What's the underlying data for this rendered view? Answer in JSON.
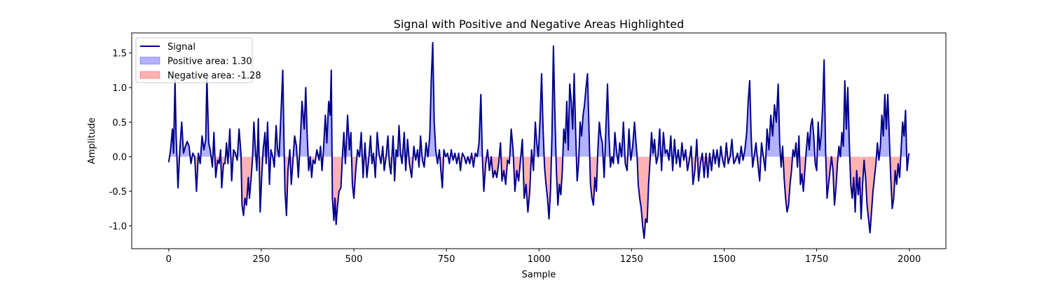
{
  "chart_data": {
    "type": "line",
    "title": "Signal with Positive and Negative Areas Highlighted",
    "x_label": "Sample",
    "y_label": "Amplitude",
    "xlim": [
      -99.95,
      2098.95
    ],
    "ylim": [
      -1.33,
      1.79
    ],
    "xticks": [
      0,
      250,
      500,
      750,
      1000,
      1250,
      1500,
      1750,
      2000
    ],
    "yticks": [
      {
        "value": -1.0,
        "label": "-1.0"
      },
      -0.5,
      {
        "value": 0.0,
        "label": "0.0"
      },
      0.5,
      {
        "value": 1.0,
        "label": "1.0"
      },
      1.5
    ],
    "legend": "upper left",
    "series": [
      {
        "name": "Signal",
        "color": "#00008b",
        "values": [
          -0.08,
          0.1,
          0.4,
          0.05,
          1.1,
          0.3,
          -0.45,
          0.1,
          0.5,
          0.05,
          0.15,
          0.22,
          0.15,
          -0.1,
          0.05,
          0.0,
          -0.5,
          0.05,
          -0.1,
          0.3,
          0.1,
          0.25,
          1.15,
          0.2,
          0.1,
          -0.15,
          0.35,
          -0.3,
          -0.05,
          -0.1,
          0.1,
          -0.45,
          -0.1,
          -0.1,
          0.2,
          -0.1,
          0.4,
          -0.35,
          0.1,
          0.05,
          -0.05,
          0.4,
          0.05,
          -0.7,
          -0.85,
          -0.6,
          -0.7,
          -0.3,
          -0.6,
          -0.35,
          -0.05,
          0.5,
          0.1,
          -0.2,
          0.55,
          -0.8,
          -0.3,
          0.1,
          0.35,
          -0.1,
          0.5,
          -0.4,
          0.1,
          0.0,
          -0.15,
          0.45,
          0.1,
          0.0,
          0.6,
          1.25,
          0.3,
          -0.5,
          -0.85,
          -0.2,
          0.1,
          -0.4,
          -0.1,
          0.3,
          0.15,
          -0.3,
          0.3,
          0.8,
          0.4,
          1.0,
          0.3,
          -0.2,
          0.0,
          -0.3,
          -0.05,
          -0.1,
          0.1,
          -0.05,
          0.15,
          -0.2,
          0.1,
          0.6,
          0.2,
          0.8,
          0.6,
          1.25,
          -0.6,
          -0.92,
          -0.6,
          -0.98,
          -0.7,
          -0.5,
          -0.45,
          0.1,
          0.35,
          -0.1,
          0.6,
          0.1,
          0.35,
          -0.4,
          -0.6,
          -0.2,
          0.1,
          0.0,
          0.35,
          -0.3,
          0.2,
          -0.3,
          -0.05,
          0.3,
          -0.1,
          0.05,
          -0.3,
          0.35,
          0.05,
          -0.1,
          0.15,
          -0.2,
          0.0,
          0.3,
          -0.1,
          -0.25,
          0.3,
          -0.35,
          0.1,
          0.0,
          0.45,
          0.05,
          -0.1,
          0.35,
          -0.2,
          0.25,
          -0.1,
          -0.3,
          0.15,
          -0.05,
          0.1,
          -0.15,
          0.3,
          -0.05,
          -0.15,
          0.2,
          0.0,
          0.3,
          1.1,
          1.65,
          0.5,
          0.1,
          -0.1,
          0.1,
          -0.2,
          -0.45,
          0.1,
          0.0,
          0.05,
          -0.1,
          0.1,
          -0.05,
          0.05,
          -0.1,
          0.05,
          -0.2,
          0.05,
          0.0,
          -0.1,
          0.0,
          -0.1,
          0.05,
          -0.15,
          0.05,
          0.0,
          0.2,
          0.9,
          0.0,
          -0.5,
          -0.1,
          0.1,
          -0.2,
          0.0,
          -0.3,
          -0.2,
          -0.3,
          -0.1,
          0.2,
          -0.35,
          -0.2,
          -0.4,
          -0.05,
          -0.1,
          0.4,
          0.1,
          -0.5,
          -0.2,
          -0.35,
          -0.05,
          0.25,
          -0.6,
          -0.4,
          -0.8,
          -0.5,
          0.1,
          -0.2,
          0.5,
          0.2,
          0.0,
          0.55,
          1.2,
          0.4,
          -0.15,
          -0.4,
          -0.6,
          -0.9,
          -0.5,
          0.3,
          1.6,
          0.6,
          -0.2,
          -0.7,
          -0.4,
          -0.55,
          -0.2,
          0.4,
          0.2,
          0.8,
          0.1,
          1.05,
          0.8,
          0.4,
          1.2,
          0.35,
          -0.35,
          -0.1,
          0.5,
          0.3,
          0.6,
          0.75,
          1.0,
          1.2,
          0.4,
          -0.4,
          -0.6,
          -0.7,
          -0.3,
          -0.5,
          0.1,
          0.5,
          0.3,
          0.2,
          -0.3,
          0.3,
          1.05,
          0.3,
          -0.15,
          0.0,
          -0.1,
          0.35,
          0.05,
          -0.1,
          0.2,
          0.0,
          0.5,
          -0.1,
          -0.2,
          0.4,
          -0.05,
          0.15,
          0.5,
          0.2,
          0.0,
          -0.4,
          -0.6,
          -0.75,
          -1.0,
          -1.18,
          -0.9,
          -0.95,
          -0.4,
          -0.05,
          0.35,
          0.05,
          0.25,
          -0.1,
          0.0,
          0.4,
          -0.2,
          0.35,
          0.05,
          0.1,
          -0.05,
          0.3,
          -0.2,
          0.25,
          -0.1,
          0.1,
          -0.15,
          0.2,
          -0.05,
          0.1,
          -0.2,
          -0.05,
          0.15,
          -0.4,
          -0.2,
          0.25,
          -0.35,
          -0.1,
          0.05,
          -0.3,
          0.05,
          -0.3,
          0.05,
          -0.2,
          0.1,
          -0.1,
          0.1,
          -0.15,
          0.15,
          -0.05,
          -0.15,
          0.2,
          -0.1,
          0.0,
          0.25,
          -0.1,
          -0.05,
          0.05,
          -0.1,
          0.15,
          -0.05,
          0.1,
          0.35,
          0.8,
          1.1,
          0.3,
          -0.15,
          0.0,
          0.2,
          -0.1,
          -0.35,
          0.2,
          0.0,
          -0.2,
          0.4,
          0.1,
          0.6,
          0.3,
          0.75,
          0.5,
          1.05,
          0.2,
          -0.15,
          0.15,
          -0.3,
          -0.6,
          -0.8,
          -0.7,
          -0.4,
          -0.2,
          0.1,
          0.0,
          0.2,
          -0.15,
          0.3,
          -0.4,
          -0.25,
          -0.5,
          -0.2,
          0.1,
          0.35,
          0.1,
          0.45,
          0.55,
          0.3,
          -0.1,
          -0.2,
          0.5,
          0.1,
          0.3,
          0.7,
          1.4,
          0.1,
          -0.6,
          -0.4,
          -0.2,
          0.0,
          -0.2,
          -0.7,
          -0.45,
          -0.1,
          0.15,
          0.0,
          0.35,
          0.15,
          1.1,
          0.4,
          1.0,
          0.2,
          -0.4,
          -0.6,
          -0.3,
          -0.8,
          -0.2,
          -0.55,
          -0.3,
          -0.9,
          -0.4,
          -0.05,
          -0.3,
          -0.7,
          -0.9,
          -1.1,
          -0.8,
          -0.5,
          -0.3,
          -0.1,
          0.2,
          -0.05,
          0.15,
          0.6,
          0.3,
          0.9,
          0.4,
          0.9,
          0.3,
          -0.3,
          -0.75,
          -0.6,
          -0.2,
          -0.4,
          -0.1,
          -0.3,
          0.1,
          0.5,
          0.3,
          0.67,
          -0.2,
          0.05
        ]
      }
    ],
    "x": [
      0,
      5,
      10,
      13,
      17,
      20,
      25,
      30,
      35,
      40,
      45,
      50,
      55,
      60,
      65,
      70,
      75,
      80,
      85,
      90,
      95,
      100,
      103,
      108,
      112,
      118,
      122,
      127,
      132,
      136,
      140,
      143,
      148,
      152,
      156,
      160,
      165,
      170,
      175,
      180,
      185,
      190,
      195,
      198,
      202,
      206,
      210,
      215,
      218,
      222,
      226,
      230,
      234,
      238,
      242,
      247,
      251,
      255,
      260,
      263,
      267,
      272,
      276,
      281,
      285,
      290,
      294,
      298,
      303,
      308,
      311,
      314,
      318,
      322,
      327,
      331,
      335,
      340,
      345,
      350,
      356,
      360,
      366,
      370,
      374,
      378,
      382,
      386,
      390,
      395,
      400,
      406,
      410,
      414,
      418,
      423,
      427,
      432,
      436,
      439,
      442,
      446,
      449,
      452,
      456,
      460,
      465,
      470,
      473,
      477,
      483,
      488,
      492,
      496,
      500,
      505,
      510,
      515,
      520,
      525,
      530,
      535,
      540,
      545,
      549,
      553,
      558,
      563,
      568,
      573,
      578,
      582,
      587,
      592,
      596,
      600,
      606,
      610,
      614,
      618,
      622,
      626,
      630,
      636,
      640,
      645,
      650,
      656,
      662,
      667,
      672,
      676,
      680,
      685,
      690,
      695,
      700,
      705,
      709,
      713,
      717,
      721,
      726,
      731,
      735,
      739,
      743,
      748,
      753,
      758,
      763,
      768,
      773,
      778,
      783,
      788,
      793,
      798,
      803,
      808,
      813,
      818,
      823,
      828,
      833,
      838,
      843,
      847,
      851,
      856,
      861,
      866,
      871,
      876,
      881,
      886,
      891,
      896,
      900,
      905,
      910,
      915,
      920,
      925,
      930,
      935,
      940,
      945,
      950,
      955,
      960,
      965,
      970,
      975,
      980,
      985,
      990,
      994,
      998,
      1003,
      1007,
      1011,
      1015,
      1019,
      1023,
      1027,
      1031,
      1035,
      1039,
      1043,
      1047,
      1051,
      1055,
      1059,
      1063,
      1067,
      1071,
      1075,
      1079,
      1083,
      1087,
      1091,
      1095,
      1099,
      1103,
      1107,
      1111,
      1115,
      1119,
      1123,
      1127,
      1131,
      1135,
      1139,
      1143,
      1147,
      1151,
      1155,
      1159,
      1163,
      1167,
      1171,
      1176,
      1180,
      1185,
      1189,
      1193,
      1197,
      1201,
      1205,
      1210,
      1214,
      1218,
      1223,
      1228,
      1233,
      1238,
      1243,
      1248,
      1253,
      1258,
      1262,
      1265,
      1268,
      1272,
      1276,
      1280,
      1284,
      1288,
      1292,
      1296,
      1300,
      1304,
      1308,
      1312,
      1317,
      1321,
      1326,
      1331,
      1336,
      1341,
      1346,
      1351,
      1356,
      1361,
      1366,
      1371,
      1376,
      1381,
      1386,
      1391,
      1396,
      1401,
      1406,
      1411,
      1416,
      1421,
      1426,
      1431,
      1436,
      1441,
      1446,
      1451,
      1456,
      1461,
      1466,
      1471,
      1476,
      1481,
      1486,
      1491,
      1496,
      1501,
      1506,
      1511,
      1516,
      1521,
      1526,
      1531,
      1536,
      1541,
      1546,
      1551,
      1556,
      1561,
      1565,
      1569,
      1573,
      1577,
      1581,
      1586,
      1591,
      1596,
      1601,
      1606,
      1611,
      1616,
      1621,
      1626,
      1631,
      1636,
      1641,
      1646,
      1650,
      1654,
      1658,
      1662,
      1666,
      1670,
      1674,
      1678,
      1682,
      1686,
      1690,
      1694,
      1698,
      1702,
      1706,
      1710,
      1714,
      1718,
      1722,
      1726,
      1730,
      1734,
      1738,
      1742,
      1746,
      1750,
      1754,
      1758,
      1762,
      1766,
      1770,
      1774,
      1778,
      1782,
      1786,
      1790,
      1794,
      1798,
      1802,
      1806,
      1810,
      1814,
      1818,
      1822,
      1826,
      1830,
      1834,
      1838,
      1842,
      1846,
      1850,
      1854,
      1858,
      1862,
      1866,
      1870,
      1874,
      1878,
      1882,
      1886,
      1890,
      1894,
      1898,
      1902,
      1906,
      1910,
      1914,
      1918,
      1922,
      1926,
      1930,
      1934,
      1938,
      1942,
      1946,
      1950,
      1954,
      1958,
      1962,
      1966,
      1970,
      1974,
      1978,
      1982,
      1986,
      1990,
      1994,
      1999
    ],
    "fills": [
      {
        "name": "Positive area: 1.30",
        "color": "#0000ff",
        "side": "positive"
      },
      {
        "name": "Negative area: -1.28",
        "color": "#ff0000",
        "side": "negative"
      }
    ]
  }
}
